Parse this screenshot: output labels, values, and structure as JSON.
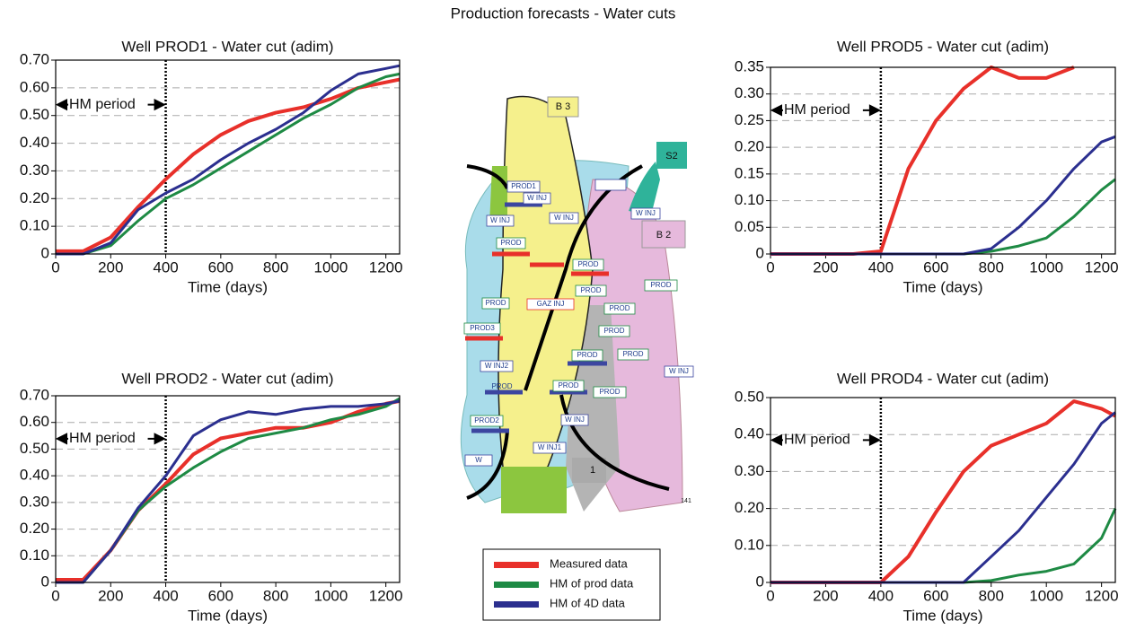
{
  "title": "Production forecasts - Water cuts",
  "legend": {
    "entries": [
      {
        "name": "Measured data",
        "color": "#e8302a"
      },
      {
        "name": "HM of prod data",
        "color": "#1e8a44"
      },
      {
        "name": "HM of 4D data",
        "color": "#2b2f8f"
      }
    ]
  },
  "map": {
    "labels": [
      "B 3",
      "S2",
      "B 2",
      "W INJ",
      "PROD1",
      "W INJ",
      "W INJ",
      "W INJ",
      "PROD",
      "PROD",
      "PROD",
      "PROD",
      "PROD",
      "PROD",
      "PROD",
      "GAZ INJ",
      "PROD",
      "PROD3",
      "PROD",
      "PROD",
      "W INJ2",
      "PROD",
      "PROD",
      "W INJ",
      "PROD2",
      "W INJ",
      "W INJ1",
      "W",
      "1",
      "141"
    ]
  },
  "chart_data": [
    {
      "type": "line",
      "title": "Well PROD1 - Water cut (adim)",
      "x_label": "Time (days)",
      "x": [
        0,
        100,
        200,
        300,
        400,
        500,
        600,
        700,
        800,
        900,
        1000,
        1100,
        1200,
        1250
      ],
      "series": [
        {
          "color": "#e8302a",
          "values": [
            0.01,
            0.01,
            0.06,
            0.17,
            0.27,
            0.36,
            0.43,
            0.48,
            0.51,
            0.53,
            0.56,
            0.6,
            0.62,
            0.63
          ]
        },
        {
          "color": "#1e8a44",
          "values": [
            0,
            0,
            0.03,
            0.12,
            0.2,
            0.25,
            0.31,
            0.37,
            0.43,
            0.49,
            0.54,
            0.6,
            0.64,
            0.65
          ]
        },
        {
          "color": "#2b2f8f",
          "values": [
            0,
            0,
            0.04,
            0.16,
            0.22,
            0.27,
            0.34,
            0.4,
            0.45,
            0.51,
            0.59,
            0.65,
            0.67,
            0.68
          ]
        }
      ],
      "annotation": {
        "text": "HM period",
        "x": 400
      },
      "xlim": [
        0,
        1250
      ],
      "xticks": [
        0,
        200,
        400,
        600,
        800,
        1000,
        1200
      ],
      "ylim": [
        0,
        0.7
      ],
      "yticks": [
        0,
        {
          "value": 0.1,
          "label": "0.10"
        },
        {
          "value": 0.2,
          "label": "0.20"
        },
        {
          "value": 0.3,
          "label": "0.30"
        },
        {
          "value": 0.4,
          "label": "0.40"
        },
        {
          "value": 0.5,
          "label": "0.50"
        },
        {
          "value": 0.6,
          "label": "0.60"
        },
        {
          "value": 0.7,
          "label": "0.70"
        }
      ],
      "grid": true
    },
    {
      "type": "line",
      "title": "Well PROD2 - Water cut (adim)",
      "x_label": "Time (days)",
      "x": [
        0,
        100,
        200,
        300,
        400,
        500,
        600,
        700,
        800,
        900,
        1000,
        1100,
        1200,
        1250
      ],
      "series": [
        {
          "color": "#e8302a",
          "values": [
            0.01,
            0.01,
            0.12,
            0.27,
            0.37,
            0.48,
            0.54,
            0.56,
            0.58,
            0.58,
            0.6,
            0.64,
            0.67,
            0.68
          ]
        },
        {
          "color": "#1e8a44",
          "values": [
            0,
            0,
            0.12,
            0.27,
            0.36,
            0.43,
            0.49,
            0.54,
            0.56,
            0.58,
            0.61,
            0.63,
            0.66,
            0.69
          ]
        },
        {
          "color": "#2b2f8f",
          "values": [
            0,
            0,
            0.12,
            0.28,
            0.4,
            0.55,
            0.61,
            0.64,
            0.63,
            0.65,
            0.66,
            0.66,
            0.67,
            0.68
          ]
        }
      ],
      "annotation": {
        "text": "HM period",
        "x": 400
      },
      "xlim": [
        0,
        1250
      ],
      "xticks": [
        0,
        200,
        400,
        600,
        800,
        1000,
        1200
      ],
      "ylim": [
        0,
        0.7
      ],
      "yticks": [
        0,
        {
          "value": 0.1,
          "label": "0.10"
        },
        {
          "value": 0.2,
          "label": "0.20"
        },
        {
          "value": 0.3,
          "label": "0.30"
        },
        {
          "value": 0.4,
          "label": "0.40"
        },
        {
          "value": 0.5,
          "label": "0.50"
        },
        {
          "value": 0.6,
          "label": "0.60"
        },
        {
          "value": 0.7,
          "label": "0.70"
        }
      ],
      "grid": true
    },
    {
      "type": "line",
      "title": "Well PROD5 - Water cut (adim)",
      "x_label": "Time (days)",
      "x": [
        0,
        100,
        200,
        300,
        400,
        500,
        600,
        700,
        800,
        900,
        1000,
        1100,
        1200,
        1250
      ],
      "series": [
        {
          "color": "#e8302a",
          "values": [
            0,
            0,
            0,
            0,
            0.005,
            0.16,
            0.25,
            0.31,
            0.35,
            0.33,
            0.33,
            0.35,
            null,
            null
          ]
        },
        {
          "color": "#1e8a44",
          "values": [
            0,
            0,
            0,
            0,
            0,
            0,
            0,
            0,
            0.005,
            0.015,
            0.03,
            0.07,
            0.12,
            0.14
          ]
        },
        {
          "color": "#2b2f8f",
          "values": [
            0,
            0,
            0,
            0,
            0,
            0,
            0,
            0,
            0.01,
            0.05,
            0.1,
            0.16,
            0.21,
            0.22
          ]
        }
      ],
      "annotation": {
        "text": "HM period",
        "x": 400
      },
      "xlim": [
        0,
        1250
      ],
      "xticks": [
        0,
        200,
        400,
        600,
        800,
        1000,
        1200
      ],
      "ylim": [
        0,
        0.35
      ],
      "yticks": [
        0,
        {
          "value": 0.05,
          "label": "0.05"
        },
        {
          "value": 0.1,
          "label": "0.10"
        },
        {
          "value": 0.15,
          "label": "0.15"
        },
        {
          "value": 0.2,
          "label": "0.20"
        },
        {
          "value": 0.25,
          "label": "0.25"
        },
        {
          "value": 0.3,
          "label": "0.30"
        },
        {
          "value": 0.35,
          "label": "0.35"
        }
      ],
      "grid": true
    },
    {
      "type": "line",
      "title": "Well PROD4 - Water cut (adim)",
      "x_label": "Time (days)",
      "x": [
        0,
        100,
        200,
        300,
        400,
        500,
        600,
        700,
        800,
        900,
        1000,
        1100,
        1200,
        1250
      ],
      "series": [
        {
          "color": "#e8302a",
          "values": [
            0,
            0,
            0,
            0,
            0,
            0.07,
            0.19,
            0.3,
            0.37,
            0.4,
            0.43,
            0.49,
            0.47,
            0.45
          ]
        },
        {
          "color": "#1e8a44",
          "values": [
            0,
            0,
            0,
            0,
            0,
            0,
            0,
            0,
            0.005,
            0.02,
            0.03,
            0.05,
            0.12,
            0.2
          ]
        },
        {
          "color": "#2b2f8f",
          "values": [
            0,
            0,
            0,
            0,
            0,
            0,
            0,
            0,
            0.07,
            0.14,
            0.23,
            0.32,
            0.43,
            0.46
          ]
        }
      ],
      "annotation": {
        "text": "HM period",
        "x": 400
      },
      "xlim": [
        0,
        1250
      ],
      "xticks": [
        0,
        200,
        400,
        600,
        800,
        1000,
        1200
      ],
      "ylim": [
        0,
        0.5
      ],
      "yticks": [
        0,
        {
          "value": 0.1,
          "label": "0.10"
        },
        {
          "value": 0.2,
          "label": "0.20"
        },
        {
          "value": 0.3,
          "label": "0.30"
        },
        {
          "value": 0.4,
          "label": "0.40"
        },
        {
          "value": 0.5,
          "label": "0.50"
        }
      ],
      "grid": true
    }
  ]
}
